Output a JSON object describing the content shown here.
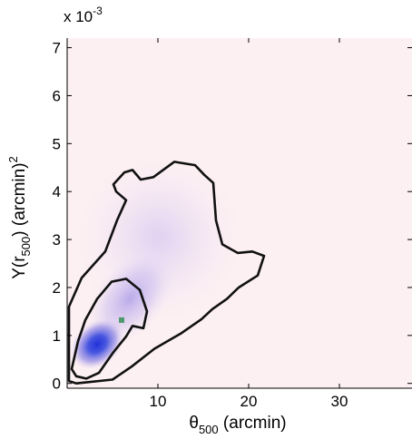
{
  "chart_data": {
    "type": "heatmap",
    "title": "",
    "xlabel": {
      "base": "θ",
      "sub": "500",
      "rest": " (arcmin)"
    },
    "ylabel": {
      "pre": "Y(r",
      "sub": "500",
      "mid": ") (arcmin)",
      "sup": "2"
    },
    "y_multiplier": {
      "prefix": "x 10",
      "exponent": "-3"
    },
    "xlim": [
      0,
      38
    ],
    "ylim": [
      -0.1,
      7.2
    ],
    "xticks": [
      10,
      20,
      30
    ],
    "yticks": [
      0,
      1,
      2,
      3,
      4,
      5,
      6,
      7
    ],
    "grid": false,
    "background_color": "#fdf0f2",
    "density_color_high": "#1e2fd6",
    "density_color_mid": "#9a86e6",
    "contour_color": "#111111",
    "peak_density": {
      "x": 3.9,
      "y": 0.78
    },
    "best_fit_marker": {
      "x": 6.0,
      "y": 1.32,
      "color": "#4f9a6c"
    },
    "contour_outer": [
      [
        0.2,
        1.6
      ],
      [
        1.6,
        2.2
      ],
      [
        4.2,
        2.75
      ],
      [
        5.5,
        3.4
      ],
      [
        6.5,
        3.82
      ],
      [
        5.4,
        4.0
      ],
      [
        5.1,
        4.15
      ],
      [
        6.3,
        4.4
      ],
      [
        7.2,
        4.45
      ],
      [
        8.1,
        4.25
      ],
      [
        9.5,
        4.3
      ],
      [
        11.8,
        4.62
      ],
      [
        14.1,
        4.55
      ],
      [
        15.1,
        4.35
      ],
      [
        16.1,
        4.18
      ],
      [
        16.4,
        3.4
      ],
      [
        17.1,
        2.9
      ],
      [
        18.8,
        2.72
      ],
      [
        20.4,
        2.75
      ],
      [
        21.7,
        2.66
      ],
      [
        21.0,
        2.25
      ],
      [
        18.9,
        2.0
      ],
      [
        17.6,
        1.76
      ],
      [
        16.0,
        1.55
      ],
      [
        14.8,
        1.34
      ],
      [
        12.6,
        1.05
      ],
      [
        9.6,
        0.72
      ],
      [
        7.1,
        0.35
      ],
      [
        5.0,
        0.08
      ],
      [
        1.0,
        0.0
      ],
      [
        0.2,
        0.05
      ]
    ],
    "contour_inner": [
      [
        0.5,
        0.3
      ],
      [
        1.2,
        0.88
      ],
      [
        2.0,
        1.32
      ],
      [
        3.3,
        1.76
      ],
      [
        4.9,
        2.12
      ],
      [
        6.5,
        2.18
      ],
      [
        8.0,
        1.95
      ],
      [
        8.8,
        1.5
      ],
      [
        8.4,
        1.15
      ],
      [
        7.2,
        1.2
      ],
      [
        6.5,
        0.98
      ],
      [
        5.1,
        0.65
      ],
      [
        3.5,
        0.22
      ],
      [
        2.1,
        0.1
      ],
      [
        1.0,
        0.15
      ]
    ]
  }
}
